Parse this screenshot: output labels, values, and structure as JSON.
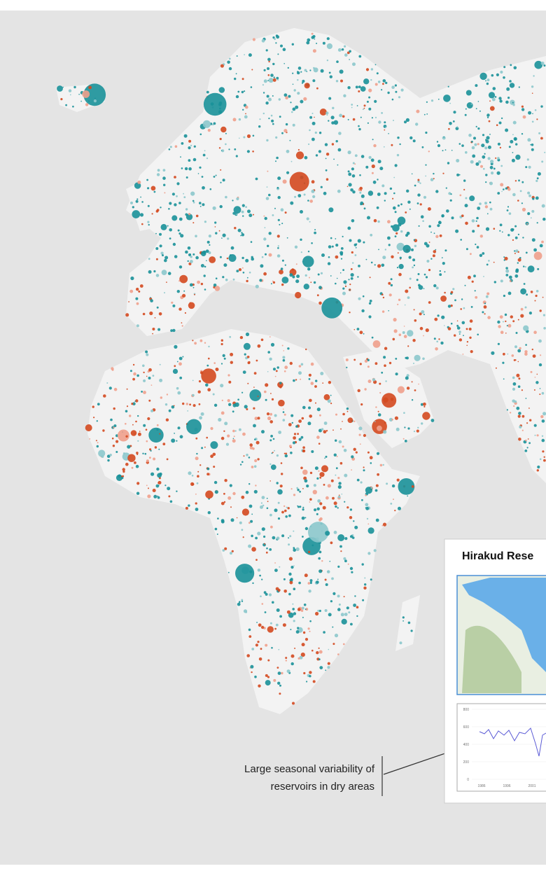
{
  "inset": {
    "title": "Hirakud Rese",
    "yticks": [
      "800",
      "600",
      "400",
      "200",
      "0"
    ],
    "xticks": [
      "1986",
      "1996",
      "2001"
    ]
  },
  "annotation": {
    "lines": [
      "Large seasonal variability of",
      "reservoirs in dry areas"
    ]
  }
}
